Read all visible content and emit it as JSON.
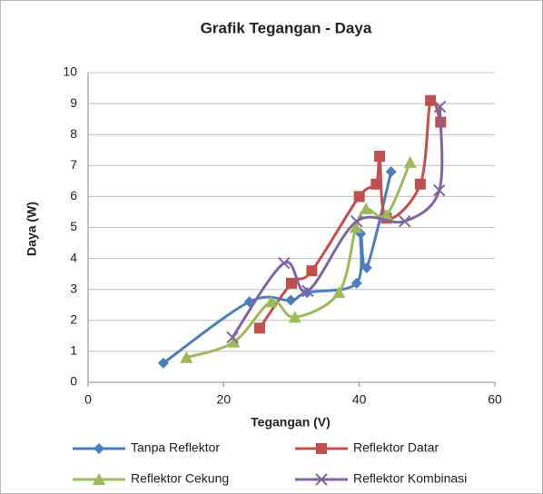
{
  "chart_data": {
    "type": "line",
    "title": "Grafik Tegangan - Daya",
    "xlabel": "Tegangan (V)",
    "ylabel": "Daya (W)",
    "xlim": [
      0,
      60
    ],
    "xticks": [
      0,
      20,
      40,
      60
    ],
    "ylim": [
      0,
      10
    ],
    "yticks": [
      0,
      1,
      2,
      3,
      4,
      5,
      6,
      7,
      8,
      9,
      10
    ],
    "grid": true,
    "legend": "bottom",
    "series": [
      {
        "name": "Tanpa Reflektor",
        "color": "#4a7ebf",
        "marker": "diamond",
        "x": [
          11.1,
          23.8,
          29.9,
          32.3,
          39.6,
          40.2,
          41.1,
          44.7
        ],
        "values": [
          0.62,
          2.6,
          2.65,
          2.9,
          3.2,
          4.8,
          3.7,
          6.8
        ]
      },
      {
        "name": "Reflektor Datar",
        "color": "#c0504d",
        "marker": "square",
        "x": [
          25.3,
          30,
          33,
          40,
          42.5,
          43,
          44,
          49,
          50.5,
          52
        ],
        "values": [
          1.75,
          3.2,
          3.6,
          6.0,
          6.4,
          7.3,
          5.3,
          6.4,
          9.1,
          8.4
        ]
      },
      {
        "name": "Reflektor Cekung",
        "color": "#9bbb59",
        "marker": "triangle",
        "x": [
          14.5,
          21.5,
          27,
          30.5,
          37,
          39.5,
          41,
          44,
          47.5
        ],
        "values": [
          0.8,
          1.3,
          2.6,
          2.1,
          2.9,
          5.0,
          5.6,
          5.4,
          7.1
        ]
      },
      {
        "name": "Reflektor Kombinasi",
        "color": "#8064a2",
        "marker": "x",
        "x": [
          21.3,
          28.9,
          32.4,
          39.6,
          46.7,
          51.8,
          51.9
        ],
        "values": [
          1.45,
          3.85,
          2.95,
          5.2,
          5.2,
          6.2,
          8.9
        ]
      }
    ]
  }
}
